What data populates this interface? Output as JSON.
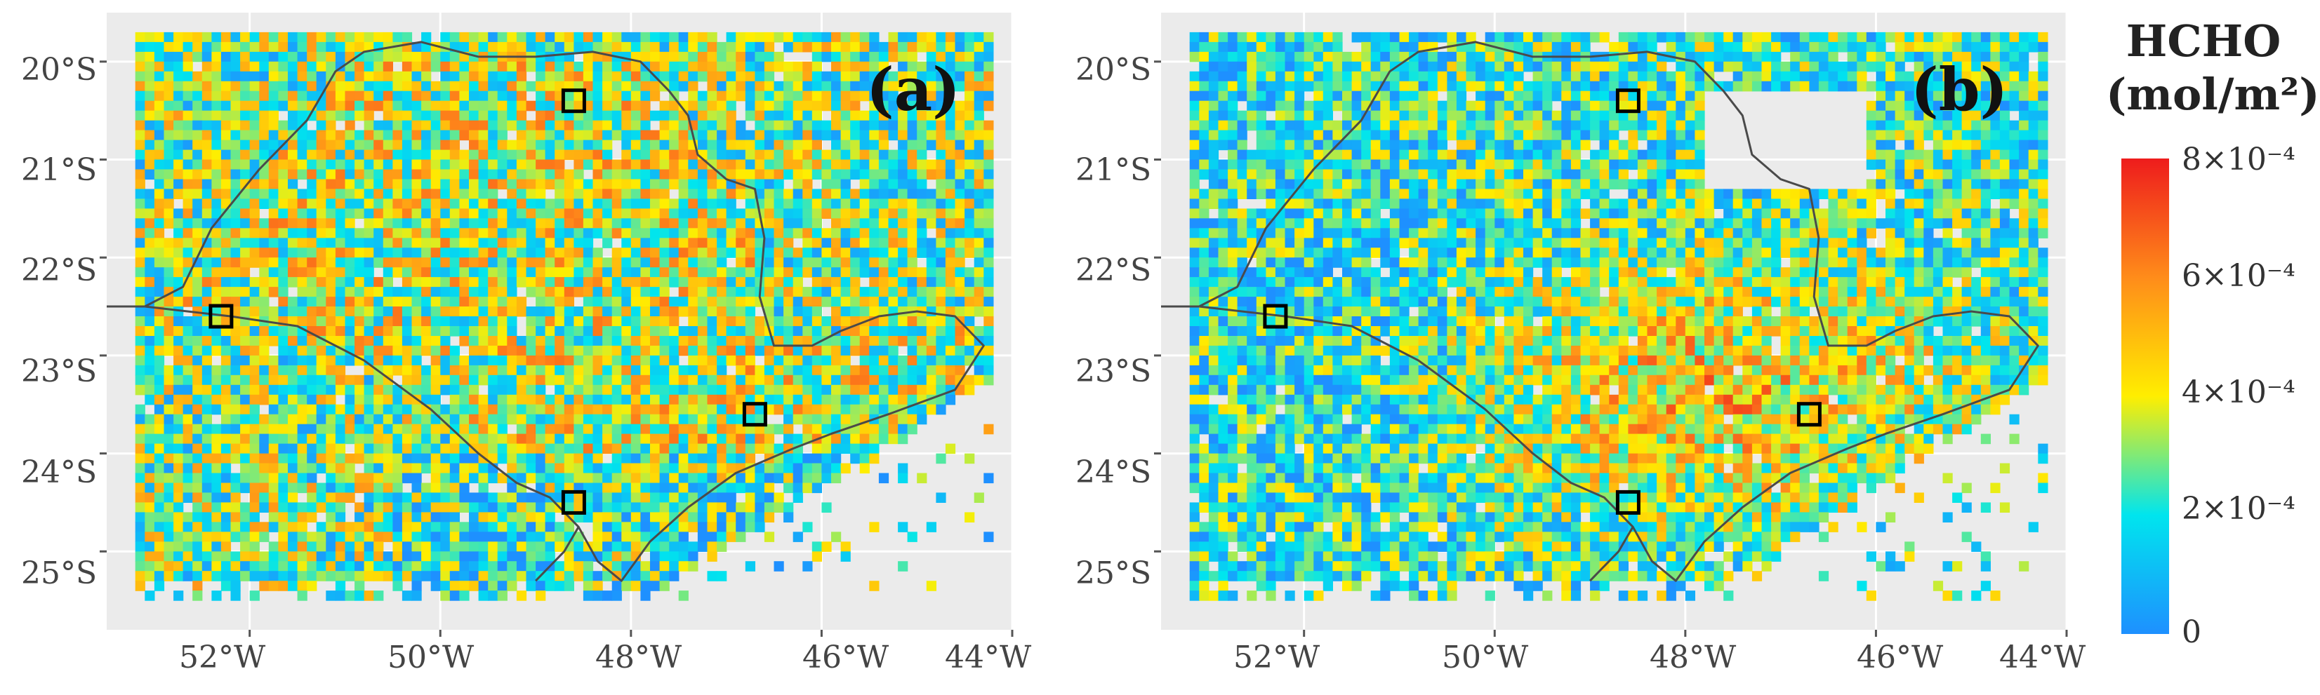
{
  "legend": {
    "title_line1": "HCHO",
    "title_line2": "(mol/m²)",
    "ticks": [
      "8×10⁻⁴",
      "6×10⁻⁴",
      "4×10⁻⁴",
      "2×10⁻⁴",
      "0"
    ],
    "tick_values": [
      0.0008,
      0.0006,
      0.0004,
      0.0002,
      0
    ],
    "colors": [
      "#1e90ff",
      "#00e5ee",
      "#ffee00",
      "#ff8c1a",
      "#ee1c1c"
    ]
  },
  "panels": [
    {
      "label": "(a)",
      "lat_ticks": [
        "20°S",
        "21°S",
        "22°S",
        "23°S",
        "24°S",
        "25°S"
      ],
      "lon_ticks": [
        "52°W",
        "50°W",
        "48°W",
        "46°W",
        "44°W"
      ]
    },
    {
      "label": "(b)",
      "lat_ticks": [
        "20°S",
        "21°S",
        "22°S",
        "23°S",
        "24°S",
        "25°S"
      ],
      "lon_ticks": [
        "52°W",
        "50°W",
        "48°W",
        "46°W",
        "44°W"
      ]
    }
  ],
  "chart_data": {
    "type": "heatmap",
    "x_range": [
      -53.5,
      -44
    ],
    "y_range": [
      -25.8,
      -19.5
    ],
    "value_range": [
      0,
      0.0008
    ],
    "colorbar_label": "HCHO (mol/m²)",
    "marked_sites": [
      {
        "lon": -48.6,
        "lat": -20.4
      },
      {
        "lon": -52.3,
        "lat": -22.6
      },
      {
        "lon": -46.7,
        "lat": -23.6
      },
      {
        "lon": -48.6,
        "lat": -24.5
      }
    ]
  }
}
